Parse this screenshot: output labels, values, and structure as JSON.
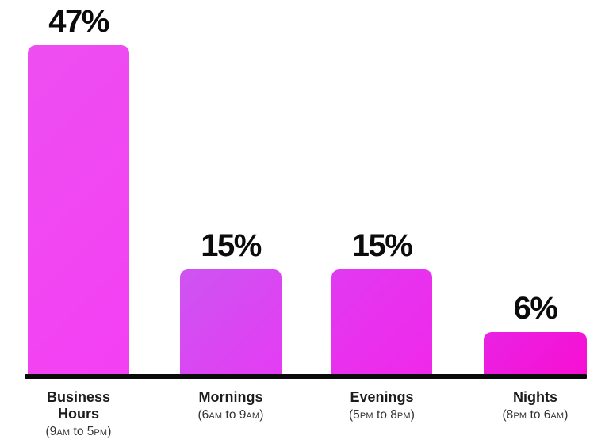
{
  "chart_data": {
    "type": "bar",
    "title": "",
    "categories": [
      "Business Hours",
      "Mornings",
      "Evenings",
      "Nights"
    ],
    "time_ranges": [
      "9AM to 5PM",
      "6AM to 9AM",
      "5PM to 8PM",
      "8PM to 6AM"
    ],
    "values": [
      47,
      15,
      15,
      6
    ],
    "value_labels": [
      "47%",
      "15%",
      "15%",
      "6%"
    ],
    "unit": "%",
    "ylim": [
      0,
      47
    ],
    "grid": false,
    "legend": false,
    "axis_color": "#0a0a0a",
    "bar_style": "vertical, rounded top corners, magenta-purple gradient fills"
  },
  "bars": [
    {
      "value_label": "47%",
      "name_lines": [
        "Business",
        "Hours"
      ],
      "time_parts": [
        "(9",
        "AM",
        " to 5",
        "PM",
        ")"
      ],
      "gradient": [
        "#ed4ff1",
        "#f43ff3"
      ]
    },
    {
      "value_label": "15%",
      "name_lines": [
        "Mornings"
      ],
      "time_parts": [
        "(6",
        "AM",
        " to 9",
        "AM",
        ")"
      ],
      "gradient": [
        "#cd54f1",
        "#e43cf3"
      ]
    },
    {
      "value_label": "15%",
      "name_lines": [
        "Evenings"
      ],
      "time_parts": [
        "(5",
        "PM",
        " to 8",
        "PM",
        ")"
      ],
      "gradient": [
        "#e139f1",
        "#f028ea"
      ]
    },
    {
      "value_label": "6%",
      "name_lines": [
        "Nights"
      ],
      "time_parts": [
        "(8",
        "PM",
        " to 6",
        "AM",
        ")"
      ],
      "gradient": [
        "#e922e3",
        "#f70fd3"
      ]
    }
  ],
  "colors": {
    "background": "#ffffff",
    "axis": "#0a0a0a",
    "value_label_text": "#0b0b0b",
    "category_text": "#1c1c1c",
    "time_range_text": "#333333"
  }
}
